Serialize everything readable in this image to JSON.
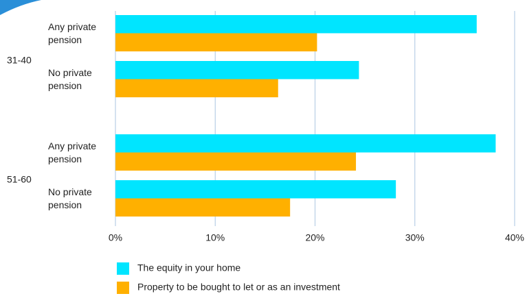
{
  "chart_data": {
    "type": "bar",
    "orientation": "horizontal",
    "groups": [
      "31-40",
      "51-60"
    ],
    "categories": [
      "Any private pension",
      "No private pension",
      "Any private pension",
      "No private pension"
    ],
    "series": [
      {
        "name": "The equity in your home",
        "color": "#00e5ff",
        "values": [
          36.2,
          24.4,
          38.1,
          28.1
        ]
      },
      {
        "name": "Property to be bought to let or as an investment",
        "color": "#ffb000",
        "values": [
          20.2,
          16.3,
          24.1,
          17.5
        ]
      }
    ],
    "xlim": [
      0,
      40
    ],
    "xticks": [
      {
        "value": 0,
        "label": "0%"
      },
      {
        "value": 10,
        "label": "10%"
      },
      {
        "value": 20,
        "label": "20%"
      },
      {
        "value": 30,
        "label": "30%"
      },
      {
        "value": 40,
        "label": "40%"
      }
    ],
    "grid": true
  }
}
